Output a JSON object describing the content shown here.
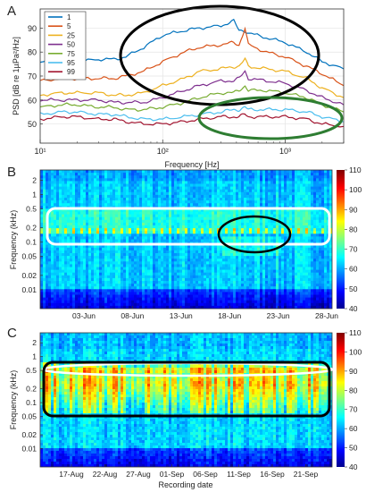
{
  "panels": {
    "a": {
      "letter": "A"
    },
    "b": {
      "letter": "B"
    },
    "c": {
      "letter": "C"
    }
  },
  "chart_data": [
    {
      "panel": "A",
      "type": "line",
      "xlabel": "Frequency [Hz]",
      "ylabel": "PSD [dB re 1µPa²/Hz]",
      "xscale": "log",
      "xlim": [
        10,
        3000
      ],
      "ylim": [
        42,
        98
      ],
      "xticks": [
        10,
        100,
        1000
      ],
      "xtick_labels": [
        "10¹",
        "10²",
        "10³"
      ],
      "yticks": [
        50,
        60,
        70,
        80,
        90
      ],
      "grid": true,
      "legend_position": "top-left",
      "series": [
        {
          "name": "1",
          "color": "#0072BD",
          "x": [
            10,
            15,
            20,
            30,
            40,
            50,
            70,
            100,
            150,
            200,
            300,
            380,
            420,
            470,
            500,
            700,
            1000,
            1500,
            2000,
            3000
          ],
          "y": [
            76,
            76,
            76,
            77,
            77,
            78,
            82,
            87,
            89,
            90,
            91,
            93,
            89,
            89,
            88,
            86,
            84,
            80,
            76,
            73
          ]
        },
        {
          "name": "5",
          "color": "#D95319",
          "x": [
            10,
            15,
            20,
            30,
            40,
            50,
            70,
            100,
            150,
            200,
            300,
            380,
            420,
            470,
            500,
            700,
            1000,
            1500,
            2000,
            3000
          ],
          "y": [
            68,
            69,
            69,
            69,
            69,
            70,
            72,
            76,
            80,
            82,
            83,
            84,
            83,
            90,
            83,
            80,
            78,
            74,
            71,
            66
          ]
        },
        {
          "name": "25",
          "color": "#EDB120",
          "x": [
            10,
            15,
            20,
            30,
            40,
            50,
            70,
            100,
            150,
            200,
            300,
            380,
            420,
            470,
            500,
            700,
            1000,
            1500,
            2000,
            3000
          ],
          "y": [
            62,
            63,
            63,
            63,
            62,
            62,
            63,
            66,
            69,
            72,
            73,
            74,
            74,
            77,
            74,
            73,
            72,
            69,
            65,
            61
          ]
        },
        {
          "name": "50",
          "color": "#7E2F8E",
          "x": [
            10,
            15,
            20,
            30,
            40,
            50,
            70,
            100,
            150,
            200,
            300,
            380,
            420,
            470,
            500,
            700,
            1000,
            1500,
            2000,
            3000
          ],
          "y": [
            60,
            60,
            60,
            60,
            59,
            59,
            59,
            61,
            64,
            66,
            68,
            68,
            69,
            72,
            69,
            68,
            67,
            64,
            61,
            58
          ]
        },
        {
          "name": "75",
          "color": "#77AC30",
          "x": [
            10,
            15,
            20,
            30,
            40,
            50,
            70,
            100,
            150,
            200,
            300,
            380,
            420,
            470,
            500,
            700,
            1000,
            1500,
            2000,
            3000
          ],
          "y": [
            57,
            58,
            58,
            57,
            57,
            56,
            56,
            57,
            59,
            61,
            63,
            63,
            64,
            66,
            64,
            64,
            63,
            61,
            58,
            55
          ]
        },
        {
          "name": "95",
          "color": "#4DBEEE",
          "x": [
            10,
            15,
            20,
            30,
            40,
            50,
            70,
            100,
            150,
            200,
            300,
            380,
            420,
            470,
            500,
            700,
            1000,
            1500,
            2000,
            3000
          ],
          "y": [
            54,
            55,
            55,
            54,
            54,
            53,
            52,
            52,
            53,
            54,
            55,
            56,
            56,
            57,
            56,
            56,
            56,
            55,
            53,
            51
          ]
        },
        {
          "name": "99",
          "color": "#A2142F",
          "x": [
            10,
            15,
            20,
            30,
            40,
            50,
            70,
            100,
            150,
            200,
            300,
            380,
            420,
            470,
            500,
            700,
            1000,
            1500,
            2000,
            3000
          ],
          "y": [
            52,
            53,
            53,
            52,
            52,
            51,
            50,
            50,
            51,
            52,
            53,
            53,
            53,
            54,
            53,
            53,
            53,
            52,
            50,
            49
          ]
        }
      ]
    },
    {
      "panel": "B",
      "type": "heatmap",
      "ylabel": "Frequency (kHz)",
      "yscale": "log",
      "ylim": [
        0.004,
        3.3
      ],
      "yticks": [
        2,
        1,
        0.5,
        0.2,
        0.1,
        0.05,
        0.02,
        0.01
      ],
      "ytick_labels": [
        "2",
        "1",
        "0.5",
        "0.2",
        "0.1",
        "0.05",
        "0.02",
        "0.01"
      ],
      "x_dates": [
        "03-Jun",
        "08-Jun",
        "13-Jun",
        "18-Jun",
        "23-Jun",
        "28-Jun"
      ],
      "colorbar": {
        "min": 40,
        "max": 110,
        "ticks": [
          40,
          50,
          60,
          70,
          80,
          90,
          100,
          110
        ]
      }
    },
    {
      "panel": "C",
      "type": "heatmap",
      "xlabel": "Recording date",
      "ylabel": "Frequency (kHz)",
      "yscale": "log",
      "ylim": [
        0.004,
        3.3
      ],
      "yticks": [
        2,
        1,
        0.5,
        0.2,
        0.1,
        0.05,
        0.02,
        0.01
      ],
      "ytick_labels": [
        "2",
        "1",
        "0.5",
        "0.2",
        "0.1",
        "0.05",
        "0.02",
        "0.01"
      ],
      "x_dates": [
        "17-Aug",
        "22-Aug",
        "27-Aug",
        "01-Sep",
        "06-Sep",
        "11-Sep",
        "16-Sep",
        "21-Sep"
      ],
      "colorbar": {
        "min": 40,
        "max": 110,
        "ticks": [
          40,
          50,
          60,
          70,
          80,
          90,
          100,
          110
        ]
      }
    }
  ]
}
